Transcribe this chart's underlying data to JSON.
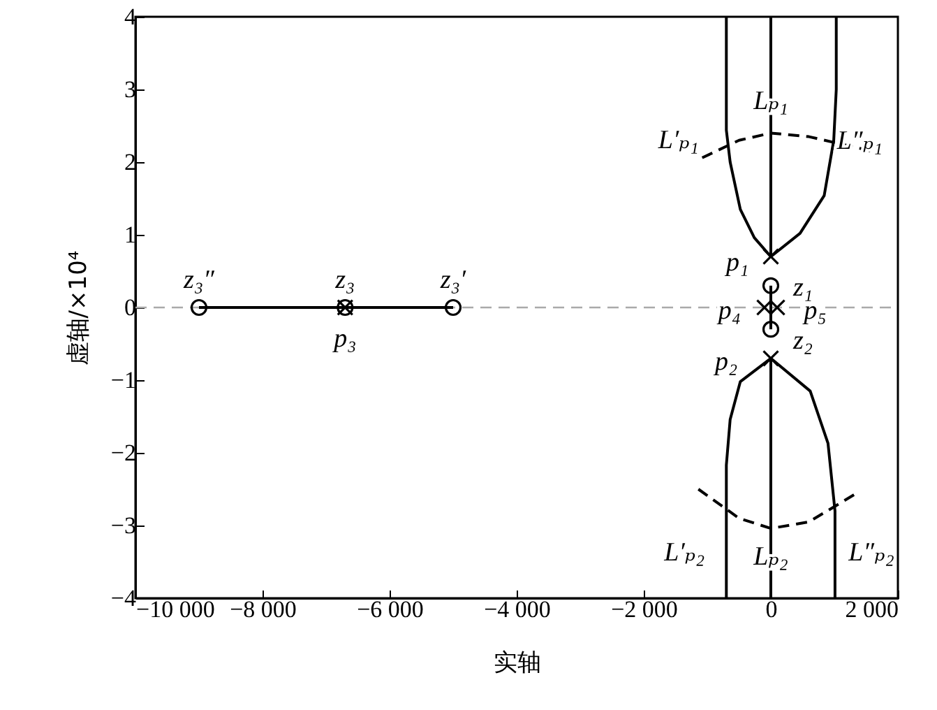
{
  "chart_data": {
    "type": "line",
    "xlabel": "实轴",
    "ylabel": "虚轴/×10⁴",
    "xlim": [
      -10000,
      2000
    ],
    "ylim": [
      -4,
      4
    ],
    "xticks": [
      {
        "value": -10000,
        "label": "−10 000"
      },
      {
        "value": -8000,
        "label": "−8 000"
      },
      {
        "value": -6000,
        "label": "−6 000"
      },
      {
        "value": -4000,
        "label": "−4 000"
      },
      {
        "value": -2000,
        "label": "−2 000"
      },
      0,
      {
        "value": 2000,
        "label": "2 000"
      }
    ],
    "yticks": [
      {
        "value": -4,
        "label": "−4"
      },
      {
        "value": -3,
        "label": "−3"
      },
      {
        "value": -2,
        "label": "−2"
      },
      {
        "value": -1,
        "label": "−1"
      },
      0,
      1,
      2,
      3,
      4
    ],
    "grid": false,
    "ref_lines": [
      {
        "axis": "y",
        "value": 0,
        "color": "#aaaaaa",
        "line_style": "dashed"
      }
    ],
    "series": [
      {
        "color": "#000000",
        "x": [
          0,
          0
        ],
        "values": [
          0.7,
          4
        ]
      },
      {
        "color": "#000000",
        "x": [
          0,
          -260,
          -480,
          -640,
          -700,
          -700
        ],
        "values": [
          0.7,
          0.96,
          1.35,
          2.0,
          2.44,
          4
        ]
      },
      {
        "color": "#000000",
        "x": [
          0,
          460,
          840,
          990,
          1030,
          1030
        ],
        "values": [
          0.7,
          1.02,
          1.54,
          2.3,
          3.0,
          4
        ]
      },
      {
        "color": "#000000",
        "x": [
          0,
          0
        ],
        "values": [
          -0.7,
          -4
        ]
      },
      {
        "color": "#000000",
        "x": [
          0,
          -480,
          -640,
          -700,
          -700
        ],
        "values": [
          -0.7,
          -1.02,
          -1.54,
          -2.17,
          -4
        ]
      },
      {
        "color": "#000000",
        "x": [
          0,
          620,
          900,
          1010,
          1010
        ],
        "values": [
          -0.7,
          -1.15,
          -1.87,
          -2.8,
          -4
        ]
      },
      {
        "color": "#000000",
        "x": [
          0,
          0
        ],
        "values": [
          0.3,
          -0.3
        ]
      },
      {
        "color": "#000000",
        "x": [
          -9000,
          -5000
        ],
        "values": [
          0,
          0
        ]
      },
      {
        "color": "#000000",
        "line_style": "dashed",
        "x": [
          -1080,
          -500,
          0,
          600,
          1600
        ],
        "values": [
          2.06,
          2.3,
          2.4,
          2.35,
          2.15
        ]
      },
      {
        "color": "#000000",
        "line_style": "dashed",
        "x": [
          -1140,
          -500,
          0,
          600,
          1380
        ],
        "values": [
          -2.5,
          -2.9,
          -3.04,
          -2.95,
          -2.54
        ]
      },
      {
        "type": "scatter",
        "color": "#000000",
        "marker": "cross",
        "x": [
          0,
          0,
          -100,
          100,
          -6700
        ],
        "values": [
          0.7,
          -0.7,
          0,
          0,
          0
        ]
      },
      {
        "type": "scatter",
        "color": "#000000",
        "marker": "circle",
        "x": [
          0,
          0,
          -9000,
          -6700,
          -5000
        ],
        "values": [
          0.3,
          -0.3,
          0,
          0,
          0
        ]
      }
    ],
    "annotations": [
      {
        "text": "z₃″",
        "x": -9000,
        "y": 0
      },
      {
        "text": "z₃",
        "x": -6700,
        "y": 0
      },
      {
        "text": "z₃′",
        "x": -5000,
        "y": 0
      },
      {
        "text": "p₃",
        "x": -6700,
        "y": 0
      },
      {
        "text": "L′ₚ₁",
        "x": -1080,
        "y": 2.06
      },
      {
        "text": "Lₚ₁",
        "x": 0,
        "y": 2.85
      },
      {
        "text": "L″ₚ₁",
        "x": 1400,
        "y": 2.3
      },
      {
        "text": "p₁",
        "x": 0,
        "y": 0.7
      },
      {
        "text": "z₁",
        "x": 0,
        "y": 0.3
      },
      {
        "text": "p₄",
        "x": -650,
        "y": -0.04
      },
      {
        "text": "p₅",
        "x": 700,
        "y": -0.04
      },
      {
        "text": "z₂",
        "x": 0,
        "y": -0.3
      },
      {
        "text": "p₂",
        "x": 0,
        "y": -0.7
      },
      {
        "text": "L′ₚ₂",
        "x": -700,
        "y": -3.5
      },
      {
        "text": "Lₚ₂",
        "x": 0,
        "y": -3.42
      },
      {
        "text": "L″ₚ₂",
        "x": 1010,
        "y": -3.4
      }
    ]
  }
}
